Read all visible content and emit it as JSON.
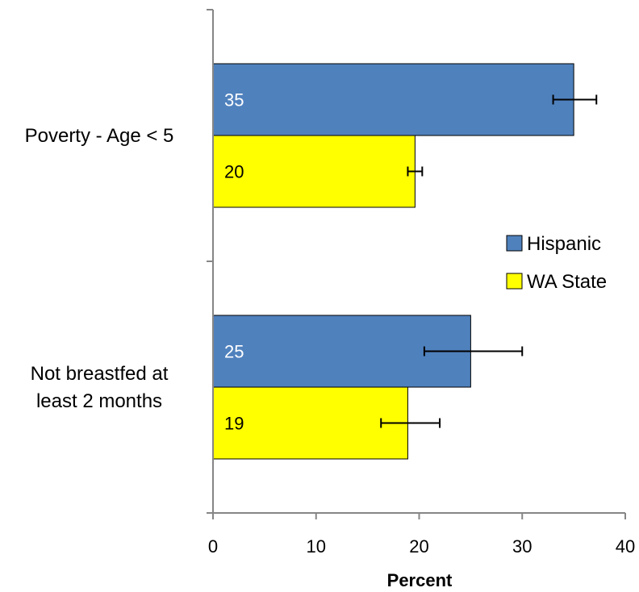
{
  "chart_data": {
    "type": "bar",
    "orientation": "horizontal",
    "categories": [
      "Poverty - Age < 5",
      "Not breastfed at least 2 months"
    ],
    "category_lines": [
      [
        "Poverty - Age < 5"
      ],
      [
        "Not breastfed at",
        "least 2 months"
      ]
    ],
    "series": [
      {
        "name": "Hispanic",
        "color": "#4f81bd",
        "label_color": "#ffffff",
        "values": [
          35,
          25
        ],
        "labels": [
          "35",
          "25"
        ],
        "error_low": [
          33,
          20.5
        ],
        "error_high": [
          37.2,
          30
        ]
      },
      {
        "name": "WA State",
        "color": "#ffff00",
        "label_color": "#000000",
        "values": [
          19.6,
          18.9
        ],
        "labels": [
          "20",
          "19"
        ],
        "error_low": [
          18.9,
          16.3
        ],
        "error_high": [
          20.3,
          22
        ]
      }
    ],
    "xlabel": "Percent",
    "xlim": [
      0,
      40
    ],
    "xticks": [
      0,
      10,
      20,
      30,
      40
    ],
    "xtick_labels": [
      "0",
      "10",
      "20",
      "30",
      "40"
    ],
    "grid": false,
    "legend_position": "right"
  }
}
